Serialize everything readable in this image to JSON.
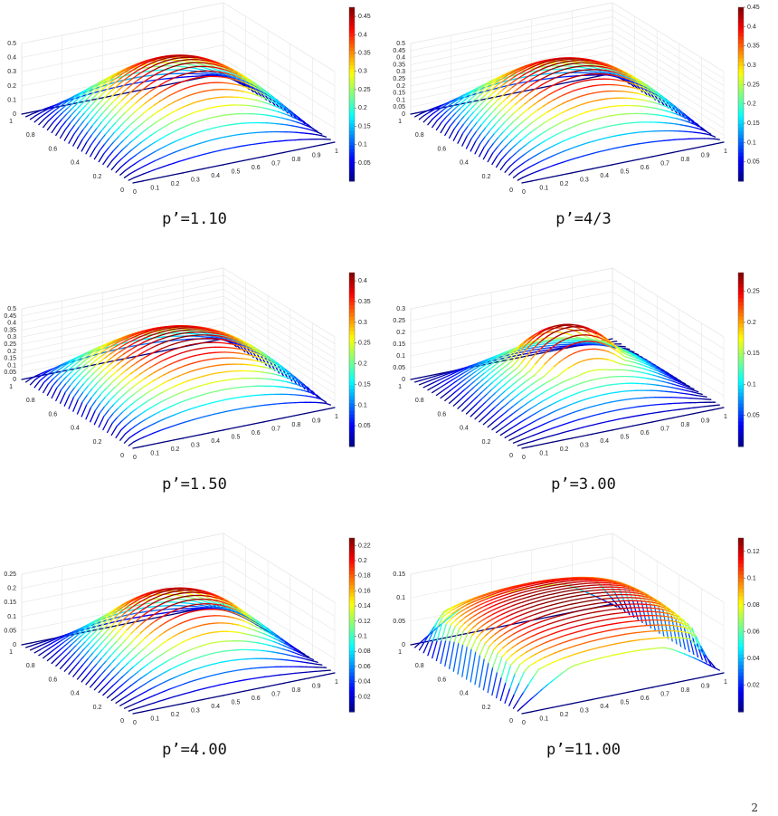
{
  "chart_data": [
    {
      "type": "surface",
      "caption": "p’=1.10",
      "zticks": [
        "0",
        "0.1",
        "0.2",
        "0.3",
        "0.4",
        "0.5"
      ],
      "zmax": 0.5,
      "peak": 0.475,
      "plateau": 0.0,
      "power": 1.2,
      "cbar_ticks": [
        "0.05",
        "0.1",
        "0.15",
        "0.2",
        "0.25",
        "0.3",
        "0.35",
        "0.4",
        "0.45"
      ],
      "cbar_max": 0.475,
      "yticks": [
        "0",
        "0.2",
        "0.4",
        "0.6",
        "0.8",
        "1"
      ],
      "xticks": [
        "0",
        "0.1",
        "0.2",
        "0.3",
        "0.4",
        "0.5",
        "0.6",
        "0.7",
        "0.8",
        "0.9",
        "1"
      ]
    },
    {
      "type": "surface",
      "caption": "p’=4/3",
      "zticks": [
        "0",
        "0.05",
        "0.1",
        "0.15",
        "0.2",
        "0.25",
        "0.3",
        "0.35",
        "0.4",
        "0.45",
        "0.5"
      ],
      "zmax": 0.5,
      "peak": 0.45,
      "plateau": 0.0,
      "power": 1.3,
      "cbar_ticks": [
        "0.05",
        "0.1",
        "0.15",
        "0.2",
        "0.25",
        "0.3",
        "0.35",
        "0.4",
        "0.45"
      ],
      "cbar_max": 0.45,
      "yticks": [
        "0",
        "0.2",
        "0.4",
        "0.6",
        "0.8",
        "1"
      ],
      "xticks": [
        "0",
        "0.1",
        "0.2",
        "0.3",
        "0.4",
        "0.5",
        "0.6",
        "0.7",
        "0.8",
        "0.9",
        "1"
      ]
    },
    {
      "type": "surface",
      "caption": "p’=1.50",
      "zticks": [
        "0",
        "0.05",
        "0.1",
        "0.15",
        "0.2",
        "0.25",
        "0.3",
        "0.35",
        "0.4",
        "0.45",
        "0.5"
      ],
      "zmax": 0.5,
      "peak": 0.42,
      "plateau": 0.0,
      "power": 1.5,
      "cbar_ticks": [
        "0.05",
        "0.1",
        "0.15",
        "0.2",
        "0.25",
        "0.3",
        "0.35",
        "0.4"
      ],
      "cbar_max": 0.42,
      "yticks": [
        "0",
        "0.2",
        "0.4",
        "0.6",
        "0.8",
        "1"
      ],
      "xticks": [
        "0",
        "0.1",
        "0.2",
        "0.3",
        "0.4",
        "0.5",
        "0.6",
        "0.7",
        "0.8",
        "0.9",
        "1"
      ]
    },
    {
      "type": "surface",
      "caption": "p’=3.00",
      "zticks": [
        "0",
        "0.05",
        "0.1",
        "0.15",
        "0.2",
        "0.25",
        "0.3"
      ],
      "zmax": 0.3,
      "peak": 0.28,
      "plateau": 0.12,
      "power": 2.5,
      "cbar_ticks": [
        "0.05",
        "0.1",
        "0.15",
        "0.2",
        "0.25"
      ],
      "cbar_max": 0.28,
      "yticks": [
        "0",
        "0.2",
        "0.4",
        "0.6",
        "0.8",
        "1"
      ],
      "xticks": [
        "0",
        "0.1",
        "0.2",
        "0.3",
        "0.4",
        "0.5",
        "0.6",
        "0.7",
        "0.8",
        "0.9",
        "1"
      ]
    },
    {
      "type": "surface",
      "caption": "p’=4.00",
      "zticks": [
        "0",
        "0.05",
        "0.1",
        "0.15",
        "0.2",
        "0.25"
      ],
      "zmax": 0.25,
      "peak": 0.23,
      "plateau": 0.18,
      "power": 3.0,
      "cbar_ticks": [
        "0.02",
        "0.04",
        "0.06",
        "0.08",
        "0.1",
        "0.12",
        "0.14",
        "0.16",
        "0.18",
        "0.2",
        "0.22"
      ],
      "cbar_max": 0.23,
      "yticks": [
        "0",
        "0.2",
        "0.4",
        "0.6",
        "0.8",
        "1"
      ],
      "xticks": [
        "0",
        "0.1",
        "0.2",
        "0.3",
        "0.4",
        "0.5",
        "0.6",
        "0.7",
        "0.8",
        "0.9",
        "1"
      ]
    },
    {
      "type": "surface",
      "caption": "p’=11.00",
      "zticks": [
        "0",
        "0.05",
        "0.1",
        "0.15"
      ],
      "zmax": 0.15,
      "peak": 0.13,
      "plateau": 0.26,
      "power": 8.0,
      "cbar_ticks": [
        "0.02",
        "0.04",
        "0.06",
        "0.08",
        "0.1",
        "0.12"
      ],
      "cbar_max": 0.13,
      "yticks": [
        "0",
        "0.2",
        "0.4",
        "0.6",
        "0.8",
        "1"
      ],
      "xticks": [
        "0",
        "0.1",
        "0.2",
        "0.3",
        "0.4",
        "0.5",
        "0.6",
        "0.7",
        "0.8",
        "0.9",
        "1"
      ]
    }
  ],
  "footer_mark": "2"
}
